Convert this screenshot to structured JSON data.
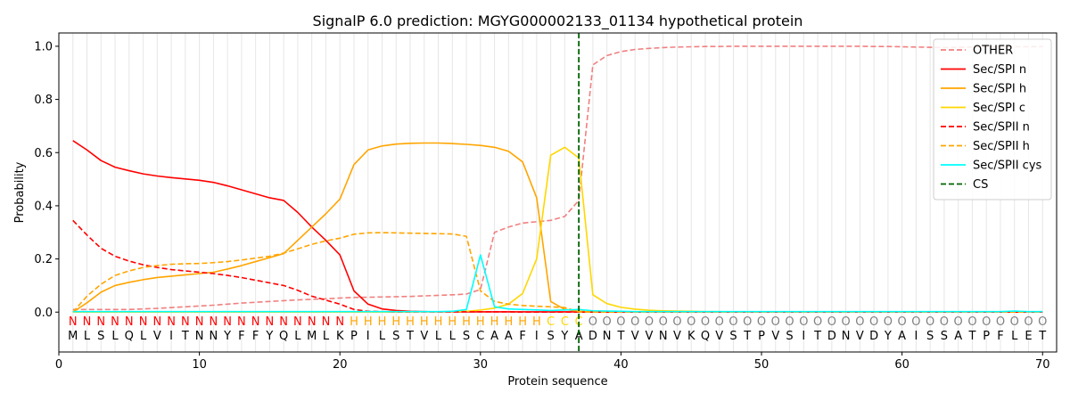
{
  "chart_data": {
    "type": "line",
    "title": "SignalP 6.0 prediction: MGYG000002133_01134 hypothetical protein",
    "xlabel": "Protein sequence",
    "ylabel": "Probability",
    "xlim": [
      0,
      71
    ],
    "ylim": [
      -0.15,
      1.05
    ],
    "xticks": [
      0,
      10,
      20,
      30,
      40,
      50,
      60,
      70
    ],
    "yticks": [
      0.0,
      0.2,
      0.4,
      0.6,
      0.8,
      1.0
    ],
    "ytick_labels": [
      "0.0",
      "0.2",
      "0.4",
      "0.6",
      "0.8",
      "1.0"
    ],
    "grid": "vertical lines at every residue position",
    "legend_position": "top-right",
    "sequence": [
      "M",
      "L",
      "S",
      "L",
      "Q",
      "L",
      "V",
      "I",
      "T",
      "N",
      "N",
      "Y",
      "F",
      "F",
      "Y",
      "Q",
      "L",
      "M",
      "L",
      "K",
      "P",
      "I",
      "L",
      "S",
      "T",
      "V",
      "L",
      "L",
      "S",
      "C",
      "A",
      "A",
      "F",
      "I",
      "S",
      "Y",
      "A",
      "D",
      "N",
      "T",
      "V",
      "V",
      "N",
      "V",
      "K",
      "Q",
      "V",
      "S",
      "T",
      "P",
      "V",
      "S",
      "I",
      "T",
      "D",
      "N",
      "V",
      "D",
      "Y",
      "A",
      "I",
      "S",
      "S",
      "A",
      "T",
      "P",
      "F",
      "L",
      "E",
      "T"
    ],
    "labels": [
      "N",
      "N",
      "N",
      "N",
      "N",
      "N",
      "N",
      "N",
      "N",
      "N",
      "N",
      "N",
      "N",
      "N",
      "N",
      "N",
      "N",
      "N",
      "N",
      "N",
      "H",
      "H",
      "H",
      "H",
      "H",
      "H",
      "H",
      "H",
      "H",
      "H",
      "H",
      "H",
      "H",
      "H",
      "C",
      "C",
      "C",
      "O",
      "O",
      "O",
      "O",
      "O",
      "O",
      "O",
      "O",
      "O",
      "O",
      "O",
      "O",
      "O",
      "O",
      "O",
      "O",
      "O",
      "O",
      "O",
      "O",
      "O",
      "O",
      "O",
      "O",
      "O",
      "O",
      "O",
      "O",
      "O",
      "O",
      "O",
      "O",
      "O"
    ],
    "label_colors": {
      "N": "#ff0000",
      "H": "#ffa500",
      "C": "#ffd700",
      "O": "#808080"
    },
    "cleavage_site": 37,
    "series": [
      {
        "name": "OTHER",
        "color": "#f08080",
        "dash": "dashed",
        "values": [
          0.01,
          0.01,
          0.01,
          0.01,
          0.01,
          0.012,
          0.014,
          0.017,
          0.02,
          0.023,
          0.026,
          0.03,
          0.034,
          0.037,
          0.04,
          0.043,
          0.046,
          0.048,
          0.05,
          0.053,
          0.055,
          0.056,
          0.057,
          0.058,
          0.059,
          0.061,
          0.063,
          0.065,
          0.068,
          0.085,
          0.3,
          0.32,
          0.335,
          0.34,
          0.345,
          0.36,
          0.42,
          0.93,
          0.965,
          0.98,
          0.988,
          0.992,
          0.995,
          0.997,
          0.998,
          0.999,
          0.999,
          1.0,
          1.0,
          1.0,
          1.0,
          1.0,
          1.0,
          1.0,
          1.0,
          1.0,
          1.0,
          0.999,
          0.999,
          0.998,
          0.997,
          0.996,
          0.995,
          0.996,
          0.997,
          0.997,
          0.998,
          0.998,
          0.998,
          0.999
        ]
      },
      {
        "name": "Sec/SPI n",
        "color": "#ff0000",
        "dash": "solid",
        "values": [
          0.645,
          0.61,
          0.57,
          0.545,
          0.532,
          0.52,
          0.512,
          0.506,
          0.501,
          0.496,
          0.488,
          0.475,
          0.46,
          0.445,
          0.43,
          0.42,
          0.375,
          0.32,
          0.27,
          0.215,
          0.08,
          0.03,
          0.012,
          0.006,
          0.003,
          0.002,
          0.001,
          0.001,
          0.001,
          0.001,
          0.001,
          0.001,
          0.001,
          0.001,
          0.001,
          0.001,
          0.001,
          0.0,
          0.0,
          0.0,
          0.0,
          0.0,
          0.0,
          0.0,
          0.0,
          0.0,
          0.0,
          0.0,
          0.0,
          0.0,
          0.0,
          0.0,
          0.0,
          0.0,
          0.0,
          0.0,
          0.0,
          0.0,
          0.0,
          0.0,
          0.0,
          0.0,
          0.0,
          0.0,
          0.0,
          0.0,
          0.0,
          0.0,
          0.0,
          0.0
        ]
      },
      {
        "name": "Sec/SPI h",
        "color": "#ffa500",
        "dash": "solid",
        "values": [
          0.0,
          0.035,
          0.075,
          0.1,
          0.112,
          0.122,
          0.13,
          0.135,
          0.14,
          0.145,
          0.15,
          0.162,
          0.175,
          0.19,
          0.205,
          0.22,
          0.27,
          0.32,
          0.37,
          0.425,
          0.555,
          0.61,
          0.625,
          0.632,
          0.635,
          0.636,
          0.636,
          0.634,
          0.631,
          0.627,
          0.62,
          0.605,
          0.565,
          0.43,
          0.04,
          0.01,
          0.003,
          0.001,
          0.0,
          0.0,
          0.0,
          0.0,
          0.0,
          0.0,
          0.0,
          0.0,
          0.0,
          0.0,
          0.0,
          0.0,
          0.0,
          0.0,
          0.0,
          0.0,
          0.0,
          0.0,
          0.0,
          0.0,
          0.0,
          0.0,
          0.0,
          0.0,
          0.0,
          0.0,
          0.0,
          0.0,
          0.0,
          0.0,
          0.0,
          0.0
        ]
      },
      {
        "name": "Sec/SPI c",
        "color": "#ffd700",
        "dash": "solid",
        "values": [
          0.0,
          0.0,
          0.0,
          0.0,
          0.0,
          0.0,
          0.0,
          0.0,
          0.0,
          0.0,
          0.0,
          0.0,
          0.0,
          0.0,
          0.0,
          0.0,
          0.0,
          0.0,
          0.0,
          0.0,
          0.0,
          0.0,
          0.0,
          0.0,
          0.0,
          0.001,
          0.001,
          0.002,
          0.003,
          0.008,
          0.015,
          0.03,
          0.07,
          0.2,
          0.59,
          0.62,
          0.58,
          0.065,
          0.032,
          0.018,
          0.011,
          0.007,
          0.005,
          0.004,
          0.003,
          0.002,
          0.002,
          0.001,
          0.001,
          0.001,
          0.001,
          0.001,
          0.001,
          0.001,
          0.0,
          0.0,
          0.0,
          0.0,
          0.0,
          0.0,
          0.0,
          0.0,
          0.0,
          0.0,
          0.0,
          0.0,
          0.0,
          0.0,
          0.0,
          0.0
        ]
      },
      {
        "name": "Sec/SPII n",
        "color": "#ff0000",
        "dash": "dashed",
        "values": [
          0.345,
          0.29,
          0.24,
          0.21,
          0.192,
          0.178,
          0.168,
          0.16,
          0.155,
          0.15,
          0.145,
          0.138,
          0.13,
          0.12,
          0.11,
          0.1,
          0.082,
          0.06,
          0.045,
          0.03,
          0.01,
          0.003,
          0.002,
          0.001,
          0.001,
          0.001,
          0.001,
          0.001,
          0.001,
          0.001,
          0.001,
          0.001,
          0.0,
          0.0,
          0.0,
          0.0,
          0.0,
          0.0,
          0.0,
          0.0,
          0.0,
          0.0,
          0.0,
          0.0,
          0.0,
          0.0,
          0.0,
          0.0,
          0.0,
          0.0,
          0.0,
          0.0,
          0.0,
          0.0,
          0.0,
          0.0,
          0.0,
          0.0,
          0.0,
          0.0,
          0.0,
          0.0,
          0.0,
          0.0,
          0.0,
          0.0,
          0.0,
          0.0,
          0.0,
          0.0
        ]
      },
      {
        "name": "Sec/SPII h",
        "color": "#ffa500",
        "dash": "dashed",
        "values": [
          0.0,
          0.06,
          0.105,
          0.138,
          0.155,
          0.168,
          0.175,
          0.18,
          0.182,
          0.183,
          0.186,
          0.19,
          0.196,
          0.203,
          0.21,
          0.222,
          0.238,
          0.255,
          0.268,
          0.278,
          0.293,
          0.298,
          0.299,
          0.298,
          0.297,
          0.296,
          0.295,
          0.294,
          0.285,
          0.08,
          0.04,
          0.03,
          0.025,
          0.022,
          0.02,
          0.017,
          0.001,
          0.0,
          0.0,
          0.0,
          0.0,
          0.0,
          0.0,
          0.0,
          0.0,
          0.0,
          0.0,
          0.0,
          0.0,
          0.0,
          0.0,
          0.0,
          0.0,
          0.0,
          0.0,
          0.0,
          0.0,
          0.0,
          0.0,
          0.0,
          0.0,
          0.0,
          0.0,
          0.0,
          0.0,
          0.0,
          0.0,
          0.0,
          0.0,
          0.0
        ]
      },
      {
        "name": "Sec/SPII cys",
        "color": "#00ffff",
        "dash": "solid",
        "values": [
          0.002,
          0.002,
          0.002,
          0.002,
          0.002,
          0.002,
          0.002,
          0.002,
          0.002,
          0.002,
          0.002,
          0.002,
          0.002,
          0.002,
          0.002,
          0.002,
          0.002,
          0.002,
          0.002,
          0.002,
          0.002,
          0.002,
          0.002,
          0.002,
          0.002,
          0.002,
          0.002,
          0.003,
          0.01,
          0.215,
          0.02,
          0.012,
          0.01,
          0.008,
          0.006,
          0.008,
          0.01,
          0.005,
          0.004,
          0.003,
          0.002,
          0.002,
          0.002,
          0.002,
          0.002,
          0.002,
          0.002,
          0.002,
          0.002,
          0.002,
          0.002,
          0.002,
          0.002,
          0.002,
          0.002,
          0.002,
          0.002,
          0.002,
          0.002,
          0.002,
          0.002,
          0.002,
          0.002,
          0.002,
          0.002,
          0.002,
          0.002,
          0.004,
          0.002,
          0.002
        ]
      }
    ],
    "legend_entries": [
      {
        "name": "OTHER",
        "color": "#f08080",
        "dash": "dashed"
      },
      {
        "name": "Sec/SPI n",
        "color": "#ff0000",
        "dash": "solid"
      },
      {
        "name": "Sec/SPI h",
        "color": "#ffa500",
        "dash": "solid"
      },
      {
        "name": "Sec/SPI c",
        "color": "#ffd700",
        "dash": "solid"
      },
      {
        "name": "Sec/SPII n",
        "color": "#ff0000",
        "dash": "dashed"
      },
      {
        "name": "Sec/SPII h",
        "color": "#ffa500",
        "dash": "dashed"
      },
      {
        "name": "Sec/SPII cys",
        "color": "#00ffff",
        "dash": "solid"
      },
      {
        "name": "CS",
        "color": "#006400",
        "dash": "dashed"
      }
    ]
  }
}
